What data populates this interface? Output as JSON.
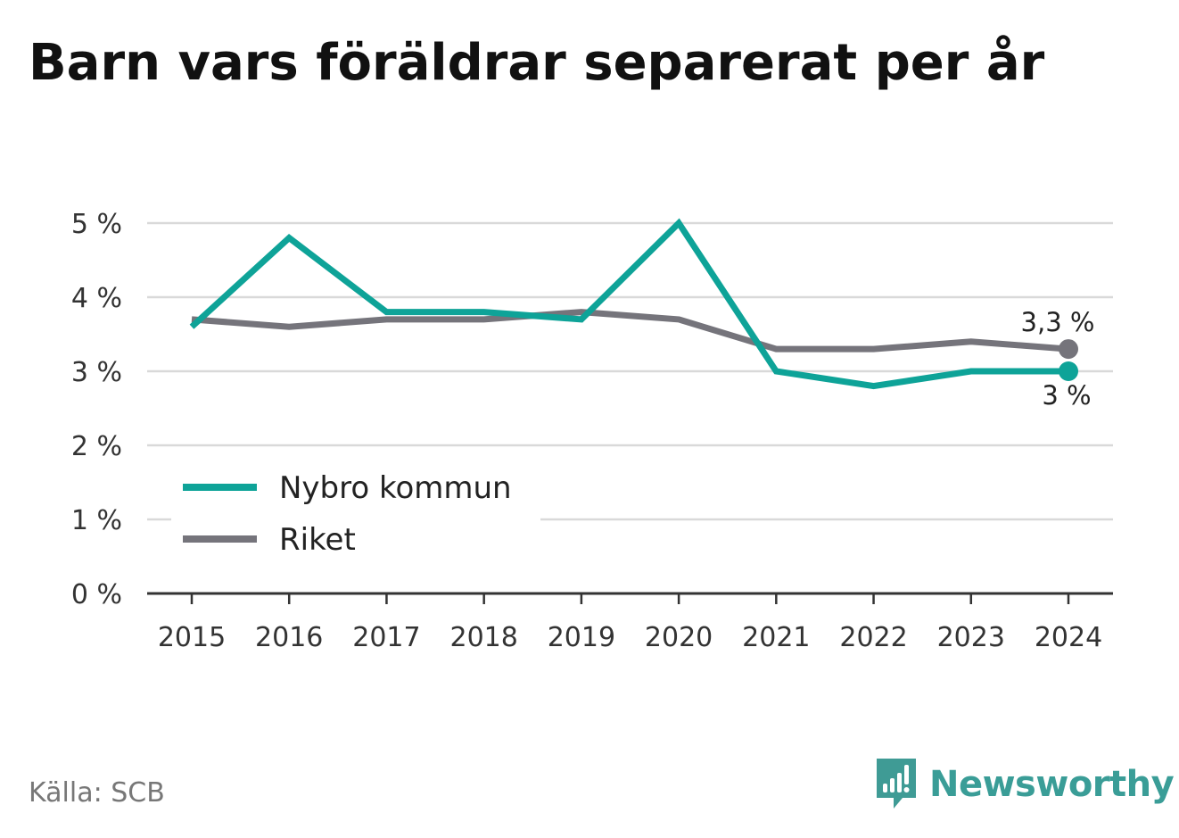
{
  "source": "Källa: SCB",
  "brand": {
    "name": "Newsworthy",
    "icon": "newsworthy-logo-icon",
    "color": "#2f9e97"
  },
  "chart_data": {
    "type": "line",
    "title": "Barn vars föräldrar separerat per år",
    "xlabel": "",
    "ylabel": "",
    "x": [
      "2015",
      "2016",
      "2017",
      "2018",
      "2019",
      "2020",
      "2021",
      "2022",
      "2023",
      "2024"
    ],
    "ylim": [
      0,
      5
    ],
    "yticks": [
      0,
      1,
      2,
      3,
      4,
      5
    ],
    "ytick_labels": [
      "0 %",
      "1 %",
      "2 %",
      "3 %",
      "4 %",
      "5 %"
    ],
    "grid": true,
    "legend": "bottom-left",
    "series": [
      {
        "name": "Nybro kommun",
        "color": "#0ea398",
        "values": [
          3.6,
          4.8,
          3.8,
          3.8,
          3.7,
          5.0,
          3.0,
          2.8,
          3.0,
          3.0
        ],
        "end_label": "3 %"
      },
      {
        "name": "Riket",
        "color": "#75747b",
        "values": [
          3.7,
          3.6,
          3.7,
          3.7,
          3.8,
          3.7,
          3.3,
          3.3,
          3.4,
          3.3
        ],
        "end_label": "3,3 %"
      }
    ]
  }
}
